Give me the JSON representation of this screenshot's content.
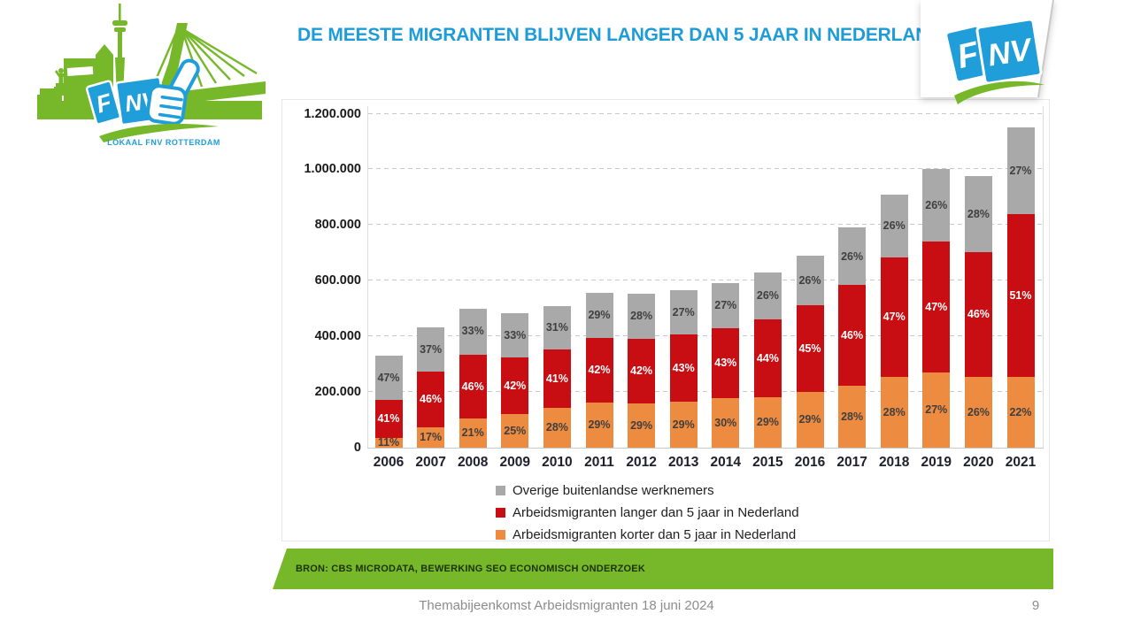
{
  "slide": {
    "title": "DE MEESTE MIGRANTEN BLIJVEN LANGER DAN 5 JAAR IN NEDERLAND",
    "source_bar": {
      "text": "BRON: CBS MICRODATA, BEWERKING SEO ECONOMISCH ONDERZOEK",
      "bg": "#76B82A"
    },
    "footer": {
      "text": "Themabijeenkomst Arbeidsmigranten 18 juni 2024",
      "page_number": "9"
    },
    "logos": {
      "fnv_box1": "F",
      "fnv_box2": "NV",
      "caption": "LOKAAL FNV ROTTERDAM"
    },
    "colors": {
      "title_blue": "#1E9CD8",
      "fnv_blue": "#1F9ED9",
      "fnv_green": "#76B82A",
      "footer_gray": "#8C8C8C"
    }
  },
  "chart_data": {
    "type": "bar",
    "subtype": "stacked",
    "title": "DE MEESTE MIGRANTEN BLIJVEN LANGER DAN 5 JAAR IN NEDERLAND",
    "categories": [
      "2006",
      "2007",
      "2008",
      "2009",
      "2010",
      "2011",
      "2012",
      "2013",
      "2014",
      "2015",
      "2016",
      "2017",
      "2018",
      "2019",
      "2020",
      "2021"
    ],
    "totals_estimated": [
      330000,
      433000,
      500000,
      484000,
      510000,
      555000,
      552000,
      565000,
      590000,
      630000,
      690000,
      790000,
      910000,
      1000000,
      975000,
      1150000
    ],
    "series": [
      {
        "name": "Arbeidsmigranten korter dan 5 jaar in Nederland",
        "color": "#ED8B40",
        "label_color": "#3F3F3F",
        "pct": [
          11,
          17,
          21,
          25,
          28,
          29,
          29,
          29,
          30,
          29,
          29,
          28,
          28,
          27,
          26,
          22
        ]
      },
      {
        "name": "Arbeidsmigranten langer dan 5 jaar in Nederland",
        "color": "#C80E13",
        "label_color": "#FFFFFF",
        "pct": [
          41,
          46,
          46,
          42,
          41,
          42,
          42,
          43,
          43,
          44,
          45,
          46,
          47,
          47,
          46,
          51
        ]
      },
      {
        "name": "Overige buitenlandse werknemers",
        "color": "#A9A9A9",
        "label_color": "#3F3F3F",
        "pct": [
          47,
          37,
          33,
          33,
          31,
          29,
          28,
          27,
          27,
          26,
          26,
          26,
          26,
          26,
          28,
          27
        ]
      }
    ],
    "legend": [
      {
        "label": "Overige buitenlandse werknemers",
        "color": "#A9A9A9"
      },
      {
        "label": "Arbeidsmigranten langer dan 5 jaar in Nederland",
        "color": "#C80E13"
      },
      {
        "label": "Arbeidsmigranten korter dan 5 jaar in Nederland",
        "color": "#ED8B40"
      }
    ],
    "y_axis": {
      "ticks": [
        {
          "label": "1.200.000",
          "value": 1200000
        },
        {
          "label": "1.000.000",
          "value": 1000000
        },
        {
          "label": "800.000",
          "value": 800000
        },
        {
          "label": "600.000",
          "value": 600000
        },
        {
          "label": "400.000",
          "value": 400000
        },
        {
          "label": "200.000",
          "value": 200000
        },
        {
          "label": "0",
          "value": 0
        }
      ],
      "ylim": [
        0,
        1200000
      ],
      "grid": "dashed"
    },
    "legend_position": "bottom",
    "value_labels": "percent inside segments"
  }
}
